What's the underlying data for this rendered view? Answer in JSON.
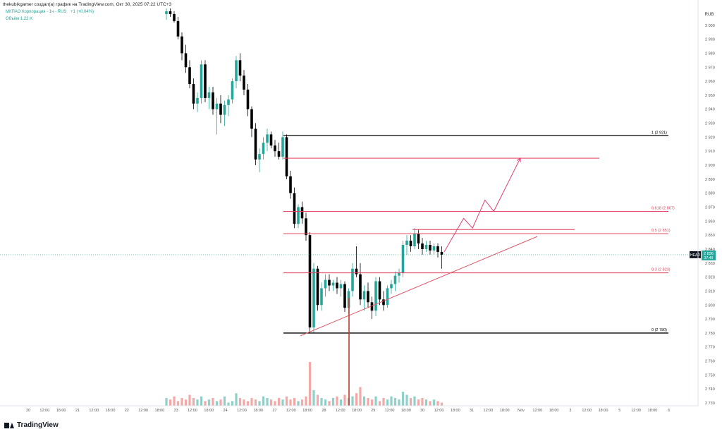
{
  "header": {
    "author_line": "thekubikgamer создал(а) график на TradingView.com, Окт 30, 2025 07:22 UTC+3",
    "symbol_line": "МКПАО Корпорация - 1ч - RUS",
    "change": "+1 (+0,04%)",
    "volume_line": "Объём  1,22 K"
  },
  "footer": {
    "brand": "TradingView"
  },
  "colors": {
    "up": "#26a69a",
    "down": "#000000",
    "fib_black": "#000000",
    "fib_red": "#e0405a",
    "trend": "#e05a6a",
    "projection": "#e0407a",
    "volume_up": "#8fd1c9",
    "volume_down": "#f4a8a8"
  },
  "chart_data": {
    "type": "candlestick",
    "currency": "RUB",
    "ylim": [
      2728,
      3012
    ],
    "y_ticks": [
      2730,
      2740,
      2750,
      2760,
      2770,
      2780,
      2790,
      2800,
      2810,
      2820,
      2830,
      2840,
      2850,
      2860,
      2870,
      2880,
      2890,
      2900,
      2910,
      2920,
      2930,
      2940,
      2950,
      2960,
      2970,
      2980,
      2990,
      3000
    ],
    "x_ticks": [
      "20",
      "12:00",
      "18:00",
      "21",
      "12:00",
      "18:00",
      "22",
      "12:00",
      "18:00",
      "23",
      "12:00",
      "18:00",
      "24",
      "12:00",
      "18:00",
      "27",
      "12:00",
      "18:00",
      "28",
      "12:00",
      "18:00",
      "29",
      "12:00",
      "18:00",
      "30",
      "12:00",
      "18:00",
      "31",
      "12:00",
      "18:00",
      "Nov",
      "12:00",
      "18:00",
      "3",
      "12:00",
      "18:00",
      "5",
      "12:00",
      "18:00",
      "6"
    ],
    "last_price": {
      "label": "HEAD",
      "price": "2 836",
      "countdown": "37:49",
      "value": 2836
    },
    "fib_levels": [
      {
        "label": "1 (2 921)",
        "value": 2921,
        "color": "black"
      },
      {
        "label": "",
        "value": 2905,
        "color": "red"
      },
      {
        "label": "0,618 (2 867)",
        "value": 2867,
        "color": "red"
      },
      {
        "label": "0,5 (2 851)",
        "value": 2851,
        "color": "red"
      },
      {
        "label": "0,3 (2 823)",
        "value": 2823,
        "color": "red"
      },
      {
        "label": "0 (2 780)",
        "value": 2780,
        "color": "black"
      }
    ],
    "resistance_level": 2854,
    "trendline": {
      "from_bar": 4,
      "from_value": 2778,
      "to_bar": 165,
      "to_value": 2849
    },
    "projection_path": [
      {
        "bar": 82,
        "value": 2838
      },
      {
        "bar": 93,
        "value": 2862
      },
      {
        "bar": 98,
        "value": 2855
      },
      {
        "bar": 105,
        "value": 2875
      },
      {
        "bar": 110,
        "value": 2867
      },
      {
        "bar": 125,
        "value": 2905
      }
    ],
    "candles": [
      {
        "o": 3008,
        "h": 3012,
        "l": 3004,
        "c": 3010
      },
      {
        "o": 3010,
        "h": 3012,
        "l": 3006,
        "c": 3008
      },
      {
        "o": 3008,
        "h": 3010,
        "l": 3002,
        "c": 3003
      },
      {
        "o": 3003,
        "h": 3006,
        "l": 2990,
        "c": 2992
      },
      {
        "o": 2992,
        "h": 2995,
        "l": 2975,
        "c": 2980
      },
      {
        "o": 2980,
        "h": 2986,
        "l": 2966,
        "c": 2970
      },
      {
        "o": 2970,
        "h": 2975,
        "l": 2955,
        "c": 2958
      },
      {
        "o": 2958,
        "h": 2962,
        "l": 2940,
        "c": 2944
      },
      {
        "o": 2944,
        "h": 2952,
        "l": 2938,
        "c": 2948
      },
      {
        "o": 2948,
        "h": 2975,
        "l": 2944,
        "c": 2972
      },
      {
        "o": 2972,
        "h": 2975,
        "l": 2945,
        "c": 2948
      },
      {
        "o": 2948,
        "h": 2956,
        "l": 2940,
        "c": 2952
      },
      {
        "o": 2952,
        "h": 2956,
        "l": 2936,
        "c": 2940
      },
      {
        "o": 2940,
        "h": 2948,
        "l": 2922,
        "c": 2944
      },
      {
        "o": 2944,
        "h": 2950,
        "l": 2930,
        "c": 2936
      },
      {
        "o": 2936,
        "h": 2946,
        "l": 2928,
        "c": 2943
      },
      {
        "o": 2943,
        "h": 2950,
        "l": 2935,
        "c": 2947
      },
      {
        "o": 2947,
        "h": 2962,
        "l": 2944,
        "c": 2960
      },
      {
        "o": 2960,
        "h": 2978,
        "l": 2955,
        "c": 2975
      },
      {
        "o": 2975,
        "h": 2980,
        "l": 2960,
        "c": 2964
      },
      {
        "o": 2964,
        "h": 2968,
        "l": 2950,
        "c": 2954
      },
      {
        "o": 2954,
        "h": 2958,
        "l": 2935,
        "c": 2940
      },
      {
        "o": 2940,
        "h": 2942,
        "l": 2920,
        "c": 2926
      },
      {
        "o": 2926,
        "h": 2930,
        "l": 2900,
        "c": 2904
      },
      {
        "o": 2904,
        "h": 2912,
        "l": 2895,
        "c": 2908
      },
      {
        "o": 2908,
        "h": 2920,
        "l": 2904,
        "c": 2916
      },
      {
        "o": 2916,
        "h": 2926,
        "l": 2910,
        "c": 2922
      },
      {
        "o": 2922,
        "h": 2924,
        "l": 2912,
        "c": 2914
      },
      {
        "o": 2914,
        "h": 2918,
        "l": 2906,
        "c": 2910
      },
      {
        "o": 2910,
        "h": 2916,
        "l": 2904,
        "c": 2906
      },
      {
        "o": 2906,
        "h": 2924,
        "l": 2904,
        "c": 2920
      },
      {
        "o": 2920,
        "h": 2922,
        "l": 2890,
        "c": 2892
      },
      {
        "o": 2892,
        "h": 2896,
        "l": 2876,
        "c": 2880
      },
      {
        "o": 2880,
        "h": 2884,
        "l": 2855,
        "c": 2858
      },
      {
        "o": 2858,
        "h": 2872,
        "l": 2855,
        "c": 2870
      },
      {
        "o": 2870,
        "h": 2874,
        "l": 2858,
        "c": 2862
      },
      {
        "o": 2862,
        "h": 2866,
        "l": 2846,
        "c": 2850
      },
      {
        "o": 2850,
        "h": 2852,
        "l": 2780,
        "c": 2784
      },
      {
        "o": 2784,
        "h": 2830,
        "l": 2780,
        "c": 2826
      },
      {
        "o": 2826,
        "h": 2828,
        "l": 2796,
        "c": 2800
      },
      {
        "o": 2800,
        "h": 2816,
        "l": 2796,
        "c": 2812
      },
      {
        "o": 2812,
        "h": 2822,
        "l": 2806,
        "c": 2818
      },
      {
        "o": 2818,
        "h": 2822,
        "l": 2810,
        "c": 2814
      },
      {
        "o": 2814,
        "h": 2818,
        "l": 2810,
        "c": 2816
      },
      {
        "o": 2816,
        "h": 2820,
        "l": 2808,
        "c": 2812
      },
      {
        "o": 2812,
        "h": 2818,
        "l": 2806,
        "c": 2815
      },
      {
        "o": 2815,
        "h": 2817,
        "l": 2795,
        "c": 2798
      },
      {
        "o": 2798,
        "h": 2812,
        "l": 2794,
        "c": 2810
      },
      {
        "o": 2810,
        "h": 2830,
        "l": 2806,
        "c": 2826
      },
      {
        "o": 2826,
        "h": 2842,
        "l": 2820,
        "c": 2822
      },
      {
        "o": 2822,
        "h": 2830,
        "l": 2800,
        "c": 2804
      },
      {
        "o": 2804,
        "h": 2814,
        "l": 2796,
        "c": 2810
      },
      {
        "o": 2810,
        "h": 2816,
        "l": 2798,
        "c": 2802
      },
      {
        "o": 2802,
        "h": 2806,
        "l": 2790,
        "c": 2796
      },
      {
        "o": 2796,
        "h": 2820,
        "l": 2792,
        "c": 2817
      },
      {
        "o": 2817,
        "h": 2820,
        "l": 2800,
        "c": 2804
      },
      {
        "o": 2804,
        "h": 2810,
        "l": 2796,
        "c": 2800
      },
      {
        "o": 2800,
        "h": 2814,
        "l": 2798,
        "c": 2812
      },
      {
        "o": 2812,
        "h": 2818,
        "l": 2808,
        "c": 2815
      },
      {
        "o": 2815,
        "h": 2824,
        "l": 2810,
        "c": 2821
      },
      {
        "o": 2821,
        "h": 2826,
        "l": 2816,
        "c": 2823
      },
      {
        "o": 2823,
        "h": 2846,
        "l": 2820,
        "c": 2843
      },
      {
        "o": 2843,
        "h": 2850,
        "l": 2836,
        "c": 2846
      },
      {
        "o": 2846,
        "h": 2850,
        "l": 2838,
        "c": 2842
      },
      {
        "o": 2842,
        "h": 2855,
        "l": 2840,
        "c": 2851
      },
      {
        "o": 2851,
        "h": 2854,
        "l": 2840,
        "c": 2844
      },
      {
        "o": 2844,
        "h": 2848,
        "l": 2836,
        "c": 2840
      },
      {
        "o": 2840,
        "h": 2846,
        "l": 2838,
        "c": 2843
      },
      {
        "o": 2843,
        "h": 2846,
        "l": 2836,
        "c": 2839
      },
      {
        "o": 2839,
        "h": 2844,
        "l": 2836,
        "c": 2842
      },
      {
        "o": 2842,
        "h": 2844,
        "l": 2834,
        "c": 2838
      },
      {
        "o": 2838,
        "h": 2842,
        "l": 2826,
        "c": 2836
      }
    ],
    "volumes": [
      5,
      4,
      6,
      3,
      5,
      4,
      7,
      5,
      4,
      6,
      3,
      4,
      5,
      3,
      4,
      6,
      2,
      3,
      8,
      5,
      4,
      3,
      5,
      4,
      3,
      6,
      5,
      4,
      3,
      5,
      4,
      6,
      4,
      5,
      3,
      4,
      6,
      28,
      10,
      7,
      5,
      4,
      3,
      5,
      6,
      4,
      7,
      5,
      6,
      8,
      12,
      6,
      5,
      4,
      6,
      3,
      5,
      4,
      6,
      5,
      4,
      9,
      7,
      5,
      6,
      4,
      5,
      4,
      3,
      4,
      3,
      2
    ]
  }
}
